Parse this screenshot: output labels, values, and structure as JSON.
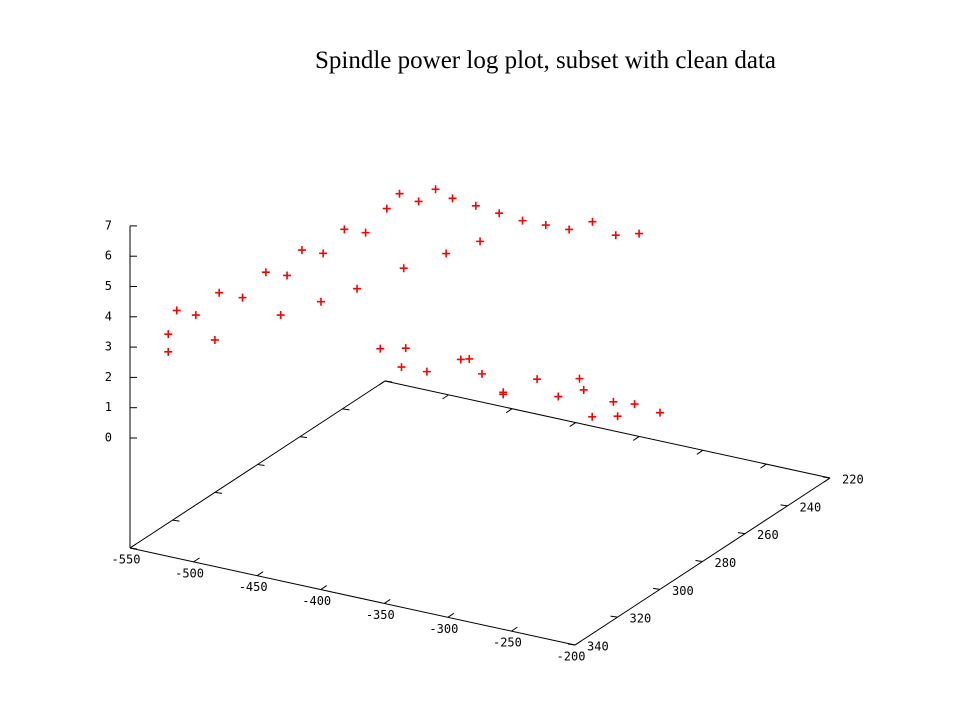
{
  "chart_data": {
    "type": "scatter3d",
    "title": "Spindle power log plot, subset with clean data",
    "color": "#ff0000",
    "xlim": [
      -550,
      -200
    ],
    "xticks": [
      -550,
      -500,
      -450,
      -400,
      -350,
      -300,
      -250,
      -200
    ],
    "ylim": [
      220,
      340
    ],
    "yticks": [
      220,
      240,
      260,
      280,
      300,
      320,
      340
    ],
    "zlim": [
      0,
      7
    ],
    "zticks": [
      0,
      1,
      2,
      3,
      4,
      5,
      6,
      7
    ],
    "x": [
      -550,
      -550,
      -540,
      -530,
      -520,
      -510,
      -500,
      -495,
      -485,
      -475,
      -465,
      -455,
      -450,
      -440,
      -430,
      -420,
      -405,
      -390,
      -375,
      -360,
      -345,
      -330,
      -315,
      -300,
      -545,
      -520,
      -490,
      -470,
      -455,
      -435,
      -415,
      -395,
      -420,
      -400,
      -380,
      -360,
      -340,
      -320,
      -300,
      -280,
      -260,
      -240,
      -220,
      -200,
      -410,
      -330,
      -250,
      -350,
      -270,
      -230
    ],
    "y": [
      322,
      318,
      315,
      310,
      305,
      300,
      296,
      292,
      288,
      284,
      280,
      276,
      273,
      270,
      268,
      266,
      264,
      262,
      260,
      258,
      256,
      254,
      252,
      250,
      325,
      318,
      305,
      298,
      290,
      280,
      272,
      268,
      300,
      300,
      302,
      298,
      300,
      302,
      298,
      300,
      300,
      298,
      300,
      300,
      296,
      296,
      302,
      300,
      296,
      302
    ],
    "z": [
      2.6,
      3.2,
      3.0,
      3.6,
      3.3,
      4.0,
      3.8,
      4.5,
      4.3,
      5.0,
      4.8,
      5.5,
      5.9,
      5.6,
      6.0,
      5.7,
      5.5,
      5.3,
      5.1,
      5.0,
      4.9,
      5.2,
      4.8,
      4.9,
      2.2,
      2.5,
      3.0,
      3.3,
      3.5,
      3.9,
      4.2,
      4.6,
      2.3,
      2.5,
      2.0,
      2.4,
      2.2,
      1.8,
      2.3,
      2.0,
      2.4,
      2.1,
      2.3,
      2.2,
      1.6,
      1.5,
      1.7,
      2.6,
      2.5,
      1.9
    ]
  }
}
